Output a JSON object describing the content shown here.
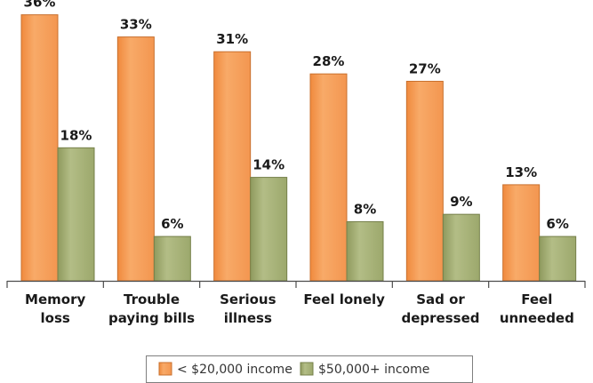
{
  "chart_data": {
    "type": "bar",
    "title": "",
    "xlabel": "",
    "ylabel": "",
    "ylim": [
      0,
      38
    ],
    "grid": false,
    "legend_position": "bottom-center",
    "categories": [
      [
        "Memory",
        "loss"
      ],
      [
        "Trouble",
        "paying bills"
      ],
      [
        "Serious",
        "illness"
      ],
      [
        "Feel lonely"
      ],
      [
        "Sad or",
        "depressed"
      ],
      [
        "Feel",
        "unneeded"
      ]
    ],
    "series": [
      {
        "name": "< $20,000 income",
        "values": [
          36,
          33,
          31,
          28,
          27,
          13
        ],
        "labels": [
          "36%",
          "33%",
          "31%",
          "28%",
          "27%",
          "13%"
        ],
        "color": "#f5a05a"
      },
      {
        "name": "$50,000+ income",
        "values": [
          18,
          6,
          14,
          8,
          9,
          6
        ],
        "labels": [
          "18%",
          "6%",
          "14%",
          "8%",
          "9%",
          "6%"
        ],
        "color": "#a8b37a"
      }
    ]
  }
}
